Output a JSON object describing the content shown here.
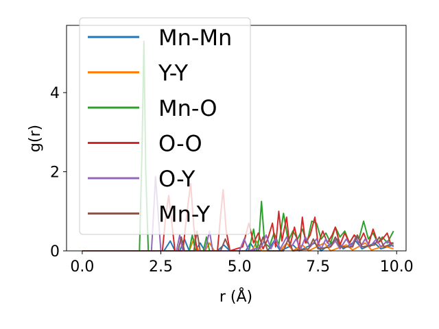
{
  "chart_data": {
    "type": "line",
    "title": "",
    "xlabel": "r (Å)",
    "ylabel": "g(r)",
    "xlim": [
      -0.5,
      10.3
    ],
    "ylim": [
      0,
      5.7
    ],
    "xticks": [
      0.0,
      2.5,
      5.0,
      7.5,
      10.0
    ],
    "xtick_labels": [
      "0.0",
      "2.5",
      "5.0",
      "7.5",
      "10.0"
    ],
    "yticks": [
      0,
      2,
      4
    ],
    "ytick_labels": [
      "0",
      "2",
      "4"
    ],
    "grid": false,
    "legend_placement": "upper-left",
    "series": [
      {
        "name": "Mn-Mn",
        "color": "#1f77b4",
        "points": [
          [
            0,
            0
          ],
          [
            2.6,
            0
          ],
          [
            2.8,
            0.25
          ],
          [
            2.95,
            0
          ],
          [
            3.1,
            0
          ],
          [
            3.25,
            0.3
          ],
          [
            3.4,
            0
          ],
          [
            3.6,
            0
          ],
          [
            3.75,
            0.2
          ],
          [
            3.9,
            0
          ],
          [
            4.3,
            0
          ],
          [
            4.5,
            0.15
          ],
          [
            4.7,
            0
          ],
          [
            5.2,
            0
          ],
          [
            5.35,
            0.2
          ],
          [
            5.5,
            0
          ],
          [
            5.9,
            0
          ],
          [
            6.1,
            0.25
          ],
          [
            6.3,
            0
          ],
          [
            6.7,
            0.15
          ],
          [
            6.9,
            0
          ],
          [
            7.4,
            0.2
          ],
          [
            7.6,
            0
          ],
          [
            8.1,
            0.3
          ],
          [
            8.3,
            0.05
          ],
          [
            8.7,
            0.25
          ],
          [
            8.9,
            0.05
          ],
          [
            9.3,
            0.2
          ],
          [
            9.5,
            0.05
          ],
          [
            9.9,
            0.15
          ]
        ]
      },
      {
        "name": "Y-Y",
        "color": "#ff7f0e",
        "points": [
          [
            0,
            0
          ],
          [
            3.4,
            0
          ],
          [
            3.55,
            0.3
          ],
          [
            3.7,
            0
          ],
          [
            3.9,
            0
          ],
          [
            4.05,
            0.2
          ],
          [
            4.2,
            0
          ],
          [
            5.4,
            0
          ],
          [
            5.55,
            0.25
          ],
          [
            5.7,
            0
          ],
          [
            6.3,
            0
          ],
          [
            6.5,
            0.2
          ],
          [
            6.7,
            0
          ],
          [
            7.0,
            0.15
          ],
          [
            7.2,
            0
          ],
          [
            7.7,
            0.2
          ],
          [
            7.9,
            0
          ],
          [
            8.4,
            0.15
          ],
          [
            8.6,
            0.02
          ],
          [
            9.0,
            0.2
          ],
          [
            9.2,
            0.02
          ],
          [
            9.6,
            0.12
          ],
          [
            9.9,
            0.05
          ]
        ]
      },
      {
        "name": "Mn-O",
        "color": "#2ca02c",
        "points": [
          [
            0,
            0
          ],
          [
            1.82,
            0
          ],
          [
            1.9,
            2.5
          ],
          [
            1.96,
            5.3
          ],
          [
            2.02,
            2.0
          ],
          [
            2.1,
            0
          ],
          [
            3.4,
            0
          ],
          [
            3.5,
            0.4
          ],
          [
            3.6,
            0
          ],
          [
            3.85,
            0
          ],
          [
            3.95,
            0.35
          ],
          [
            4.05,
            0
          ],
          [
            5.3,
            0
          ],
          [
            5.45,
            0.55
          ],
          [
            5.55,
            0
          ],
          [
            5.62,
            0.3
          ],
          [
            5.7,
            1.25
          ],
          [
            5.8,
            0.2
          ],
          [
            5.95,
            0.1
          ],
          [
            6.1,
            0.45
          ],
          [
            6.25,
            0.15
          ],
          [
            6.4,
            0.95
          ],
          [
            6.55,
            0.25
          ],
          [
            6.7,
            0.5
          ],
          [
            6.85,
            0.3
          ],
          [
            7.0,
            0.55
          ],
          [
            7.15,
            0.2
          ],
          [
            7.3,
            0.75
          ],
          [
            7.45,
            0.7
          ],
          [
            7.6,
            0.3
          ],
          [
            7.75,
            0.45
          ],
          [
            7.9,
            0.2
          ],
          [
            8.05,
            0.6
          ],
          [
            8.2,
            0.35
          ],
          [
            8.35,
            0.5
          ],
          [
            8.5,
            0.2
          ],
          [
            8.65,
            0.4
          ],
          [
            8.8,
            0.3
          ],
          [
            8.95,
            0.75
          ],
          [
            9.1,
            0.3
          ],
          [
            9.25,
            0.45
          ],
          [
            9.4,
            0.2
          ],
          [
            9.55,
            0.35
          ],
          [
            9.7,
            0.2
          ],
          [
            9.9,
            0.5
          ]
        ]
      },
      {
        "name": "O-O",
        "color": "#d62728",
        "points": [
          [
            0,
            0
          ],
          [
            2.55,
            0
          ],
          [
            2.65,
            0.85
          ],
          [
            2.75,
            1.4
          ],
          [
            2.85,
            0.7
          ],
          [
            2.95,
            0
          ],
          [
            3.2,
            0
          ],
          [
            3.35,
            1.1
          ],
          [
            3.45,
            1.7
          ],
          [
            3.55,
            0.6
          ],
          [
            3.65,
            0
          ],
          [
            4.3,
            0
          ],
          [
            4.4,
            0.9
          ],
          [
            4.48,
            1.55
          ],
          [
            4.58,
            0.5
          ],
          [
            4.7,
            0
          ],
          [
            5.1,
            0.1
          ],
          [
            5.3,
            0.7
          ],
          [
            5.45,
            0.2
          ],
          [
            5.6,
            0.45
          ],
          [
            5.75,
            0.05
          ],
          [
            5.9,
            0.3
          ],
          [
            6.05,
            0.7
          ],
          [
            6.15,
            0.1
          ],
          [
            6.25,
            1.0
          ],
          [
            6.35,
            0.25
          ],
          [
            6.5,
            0.85
          ],
          [
            6.6,
            0.1
          ],
          [
            6.75,
            0.6
          ],
          [
            6.9,
            0.05
          ],
          [
            7.0,
            0.85
          ],
          [
            7.1,
            0.2
          ],
          [
            7.25,
            0.4
          ],
          [
            7.4,
            0.85
          ],
          [
            7.5,
            0.15
          ],
          [
            7.65,
            0.5
          ],
          [
            7.8,
            0.2
          ],
          [
            7.95,
            0.4
          ],
          [
            8.05,
            0.6
          ],
          [
            8.2,
            0.15
          ],
          [
            8.35,
            0.45
          ],
          [
            8.5,
            0.2
          ],
          [
            8.65,
            0.4
          ],
          [
            8.8,
            0.2
          ],
          [
            8.95,
            0.45
          ],
          [
            9.1,
            0.15
          ],
          [
            9.25,
            0.55
          ],
          [
            9.4,
            0.2
          ],
          [
            9.55,
            0.3
          ],
          [
            9.7,
            0.45
          ],
          [
            9.8,
            0.2
          ],
          [
            9.9,
            0.2
          ]
        ]
      },
      {
        "name": "O-Y",
        "color": "#9467bd",
        "points": [
          [
            0,
            0
          ],
          [
            2.2,
            0
          ],
          [
            2.28,
            1.1
          ],
          [
            2.33,
            1.88
          ],
          [
            2.42,
            0.9
          ],
          [
            2.5,
            0
          ],
          [
            3.0,
            0
          ],
          [
            3.1,
            0.4
          ],
          [
            3.2,
            0
          ],
          [
            3.9,
            0
          ],
          [
            4.05,
            0.5
          ],
          [
            4.15,
            0
          ],
          [
            5.0,
            0
          ],
          [
            5.15,
            0.3
          ],
          [
            5.3,
            0
          ],
          [
            5.7,
            0.1
          ],
          [
            5.85,
            0.4
          ],
          [
            6.0,
            0.05
          ],
          [
            6.15,
            0.3
          ],
          [
            6.3,
            0.05
          ],
          [
            6.5,
            0.35
          ],
          [
            6.65,
            0.1
          ],
          [
            6.8,
            0.3
          ],
          [
            6.95,
            0.05
          ],
          [
            7.1,
            0.35
          ],
          [
            7.25,
            0.1
          ],
          [
            7.45,
            0.3
          ],
          [
            7.6,
            0.05
          ],
          [
            7.75,
            0.3
          ],
          [
            7.9,
            0.1
          ],
          [
            8.05,
            0.25
          ],
          [
            8.2,
            0.05
          ],
          [
            8.4,
            0.3
          ],
          [
            8.55,
            0.1
          ],
          [
            8.7,
            0.35
          ],
          [
            8.85,
            0.1
          ],
          [
            9.0,
            0.3
          ],
          [
            9.15,
            0.1
          ],
          [
            9.35,
            0.3
          ],
          [
            9.5,
            0.1
          ],
          [
            9.7,
            0.25
          ],
          [
            9.9,
            0.1
          ]
        ]
      },
      {
        "name": "Mn-Y",
        "color": "#8c564b",
        "points": [
          [
            0,
            0
          ],
          [
            3.05,
            0
          ],
          [
            3.15,
            0.35
          ],
          [
            3.25,
            0
          ],
          [
            3.55,
            0
          ],
          [
            3.65,
            0.5
          ],
          [
            3.75,
            0
          ],
          [
            4.4,
            0
          ],
          [
            4.55,
            0.3
          ],
          [
            4.7,
            0
          ],
          [
            5.6,
            0
          ],
          [
            5.75,
            0.35
          ],
          [
            5.9,
            0
          ],
          [
            6.4,
            0
          ],
          [
            6.55,
            0.3
          ],
          [
            6.7,
            0
          ],
          [
            7.2,
            0.05
          ],
          [
            7.35,
            0.3
          ],
          [
            7.5,
            0.05
          ],
          [
            7.9,
            0.1
          ],
          [
            8.05,
            0.35
          ],
          [
            8.2,
            0.1
          ],
          [
            8.6,
            0.1
          ],
          [
            8.75,
            0.4
          ],
          [
            8.9,
            0.1
          ],
          [
            9.3,
            0.15
          ],
          [
            9.45,
            0.35
          ],
          [
            9.6,
            0.1
          ],
          [
            9.9,
            0.2
          ]
        ]
      }
    ]
  }
}
